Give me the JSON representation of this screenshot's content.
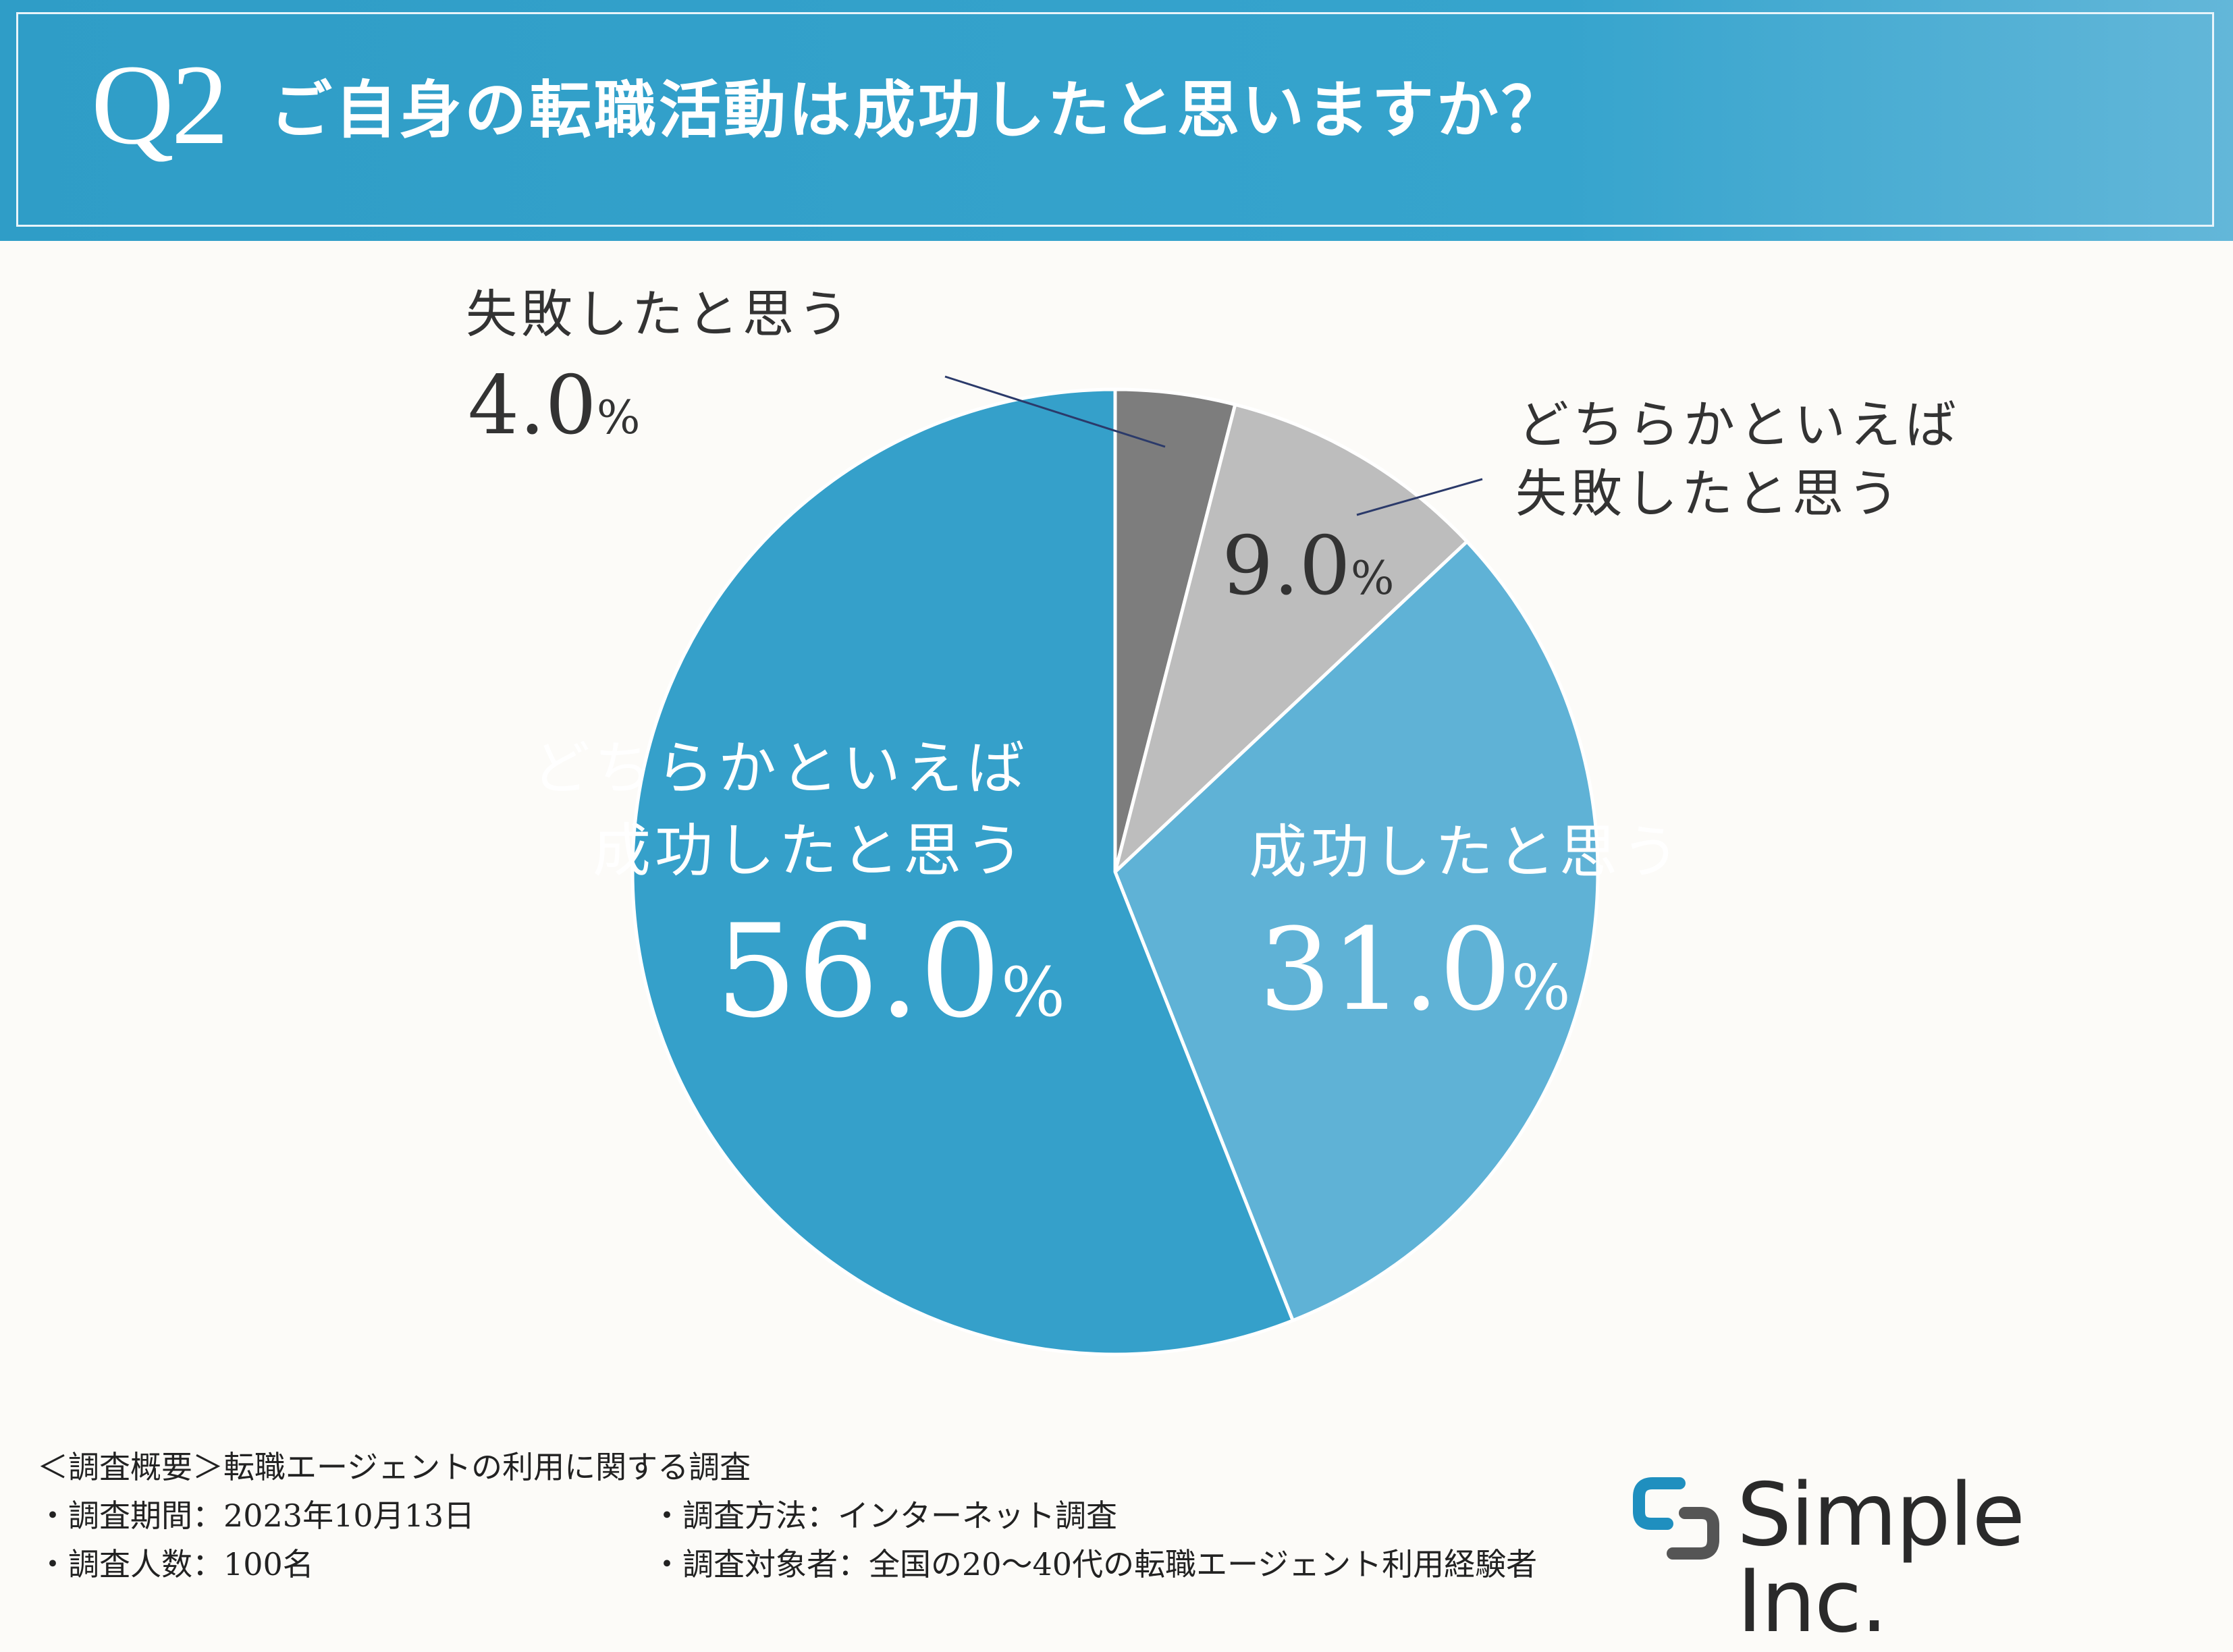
{
  "header": {
    "q_label": "Q2",
    "title": "ご自身の転職活動は成功したと思いますか？"
  },
  "colors": {
    "header_bg": "#2f9dc7",
    "slice_success": "#5fb2d6",
    "slice_somewhat_success": "#35a0ca",
    "slice_somewhat_fail": "#bdbdbd",
    "slice_fail": "#7d7d7d"
  },
  "chart_data": {
    "type": "pie",
    "title": "ご自身の転職活動は成功したと思いますか？",
    "slices": [
      {
        "label": "失敗したと思う",
        "value": 4.0,
        "display": "4.0",
        "color": "#7d7d7d"
      },
      {
        "label": "どちらかといえば失敗したと思う",
        "value": 9.0,
        "display": "9.0",
        "color": "#bdbdbd"
      },
      {
        "label": "成功したと思う",
        "value": 31.0,
        "display": "31.0",
        "color": "#5fb2d6"
      },
      {
        "label": "どちらかといえば成功したと思う",
        "value": 56.0,
        "display": "56.0",
        "color": "#35a0ca"
      }
    ],
    "label_lines": {
      "fail": [
        "失敗したと思う"
      ],
      "somewhat_fail": [
        "どちらかといえば",
        "失敗したと思う"
      ],
      "success": [
        "成功したと思う"
      ],
      "somewhat_success": [
        "どちらかといえば",
        "成功したと思う"
      ]
    },
    "unit": "%",
    "start": "12 o'clock",
    "direction": "clockwise"
  },
  "footer": {
    "summary": "＜調査概要＞転職エージェントの利用に関する調査",
    "period": "・調査期間：2023年10月13日",
    "count": "・調査人数：100名",
    "method": "・調査方法：インターネット調査",
    "target": "・調査対象者：全国の20〜40代の転職エージェント利用経験者"
  },
  "logo": {
    "text": "Simple Inc."
  }
}
